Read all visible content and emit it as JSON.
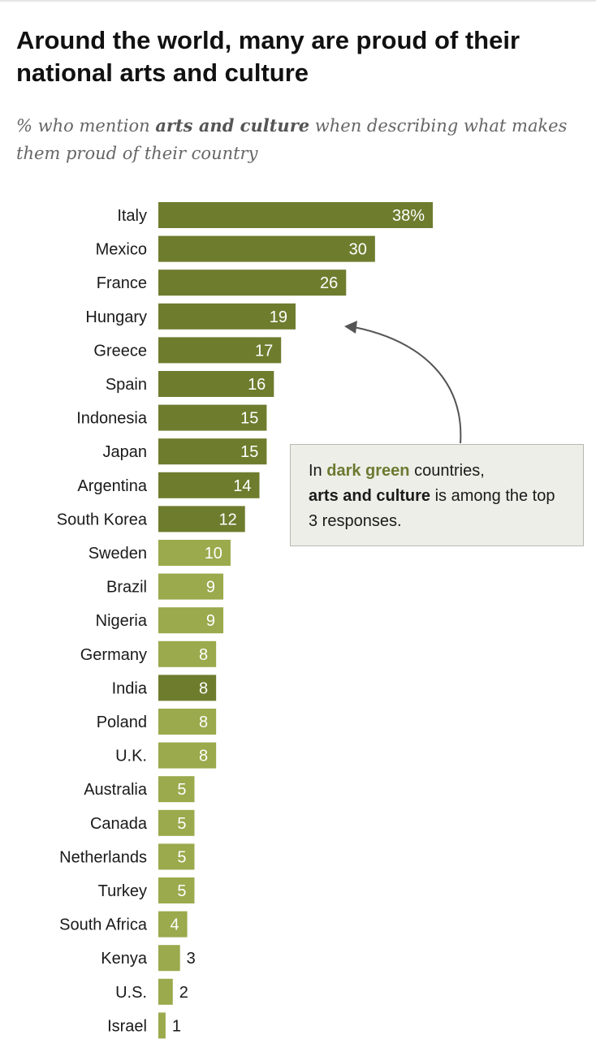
{
  "header": {
    "title": "Around the world, many are proud of their national arts and culture",
    "subtitle_pre": "% who mention ",
    "subtitle_bold": "arts and culture",
    "subtitle_post": " when describing what makes them proud of their country"
  },
  "callout": {
    "part1": "In ",
    "part2": "dark green",
    "part3": " countries,",
    "part4": "arts and culture",
    "part5": " is among the top 3 responses."
  },
  "colors": {
    "dark": "#6e7c2e",
    "light": "#9aaa4c",
    "inside_text": "#ffffff",
    "outside_text": "#1a1a1a"
  },
  "chart_data": {
    "type": "bar",
    "orientation": "horizontal",
    "title": "Around the world, many are proud of their national arts and culture",
    "xlabel": "",
    "ylabel": "",
    "unit": "%",
    "xlim": [
      0,
      38
    ],
    "categories": [
      "Italy",
      "Mexico",
      "France",
      "Hungary",
      "Greece",
      "Spain",
      "Indonesia",
      "Japan",
      "Argentina",
      "South Korea",
      "Sweden",
      "Brazil",
      "Nigeria",
      "Germany",
      "India",
      "Poland",
      "U.K.",
      "Australia",
      "Canada",
      "Netherlands",
      "Turkey",
      "South Africa",
      "Kenya",
      "U.S.",
      "Israel"
    ],
    "values": [
      38,
      30,
      26,
      19,
      17,
      16,
      15,
      15,
      14,
      12,
      10,
      9,
      9,
      8,
      8,
      8,
      8,
      5,
      5,
      5,
      5,
      4,
      3,
      2,
      1
    ],
    "labels": [
      "38%",
      "30",
      "26",
      "19",
      "17",
      "16",
      "15",
      "15",
      "14",
      "12",
      "10",
      "9",
      "9",
      "8",
      "8",
      "8",
      "8",
      "5",
      "5",
      "5",
      "5",
      "4",
      "3",
      "2",
      "1"
    ],
    "top3": [
      true,
      true,
      true,
      true,
      true,
      true,
      true,
      true,
      true,
      true,
      false,
      false,
      false,
      false,
      true,
      false,
      false,
      false,
      false,
      false,
      false,
      false,
      false,
      false,
      false
    ]
  }
}
